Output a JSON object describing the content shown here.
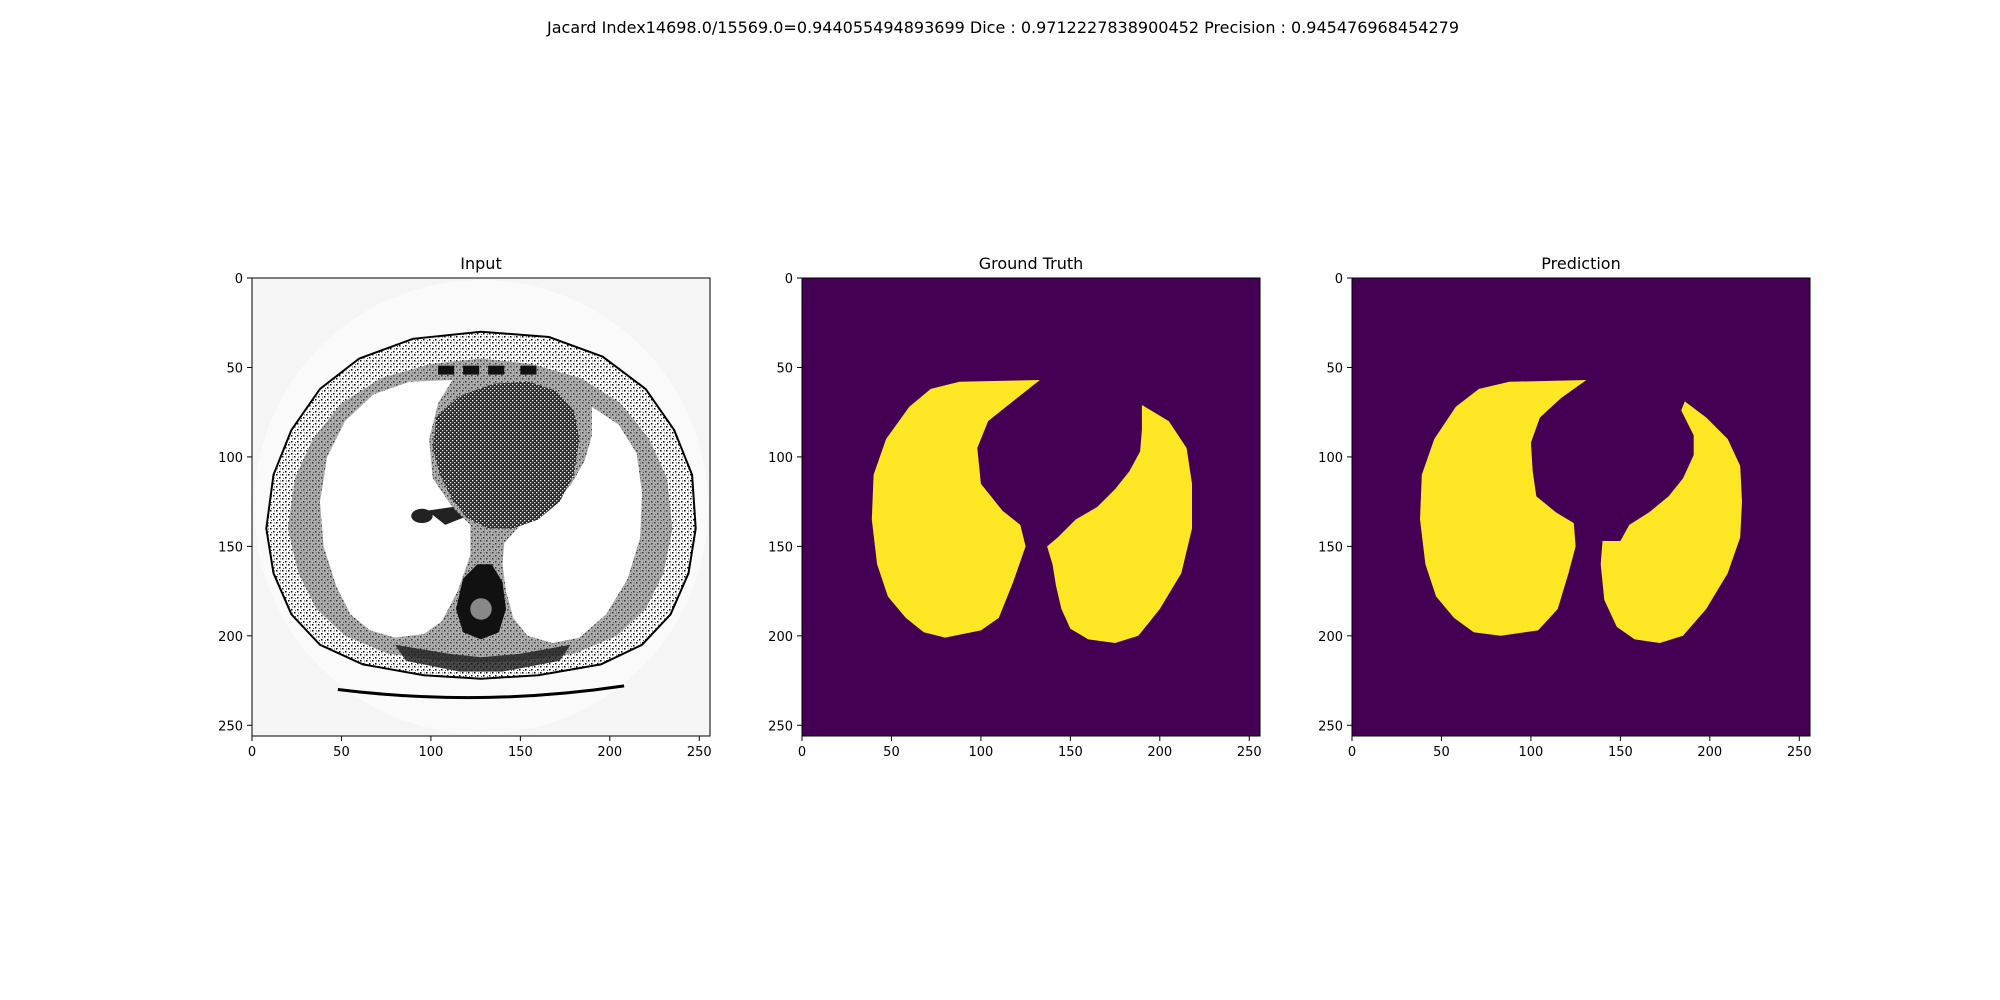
{
  "figure": {
    "suptitle": "Jacard Index14698.0/15569.0=0.944055494893699 Dice : 0.9712227838900452 Precision : 0.945476968454279"
  },
  "chart_data": [
    {
      "type": "heatmap",
      "title": "Input",
      "xlim": [
        0,
        256
      ],
      "ylim": [
        256,
        0
      ],
      "xticks": [
        0,
        50,
        100,
        150,
        200,
        250
      ],
      "yticks": [
        0,
        50,
        100,
        150,
        200,
        250
      ],
      "colormap": "gray",
      "image_description_colors": {
        "background": "#f5f5f5",
        "tissue": "#000000",
        "lung": "#ffffff"
      }
    },
    {
      "type": "heatmap",
      "title": "Ground Truth",
      "xlim": [
        0,
        256
      ],
      "ylim": [
        256,
        0
      ],
      "xticks": [
        0,
        50,
        100,
        150,
        200,
        250
      ],
      "yticks": [
        0,
        50,
        100,
        150,
        200,
        250
      ],
      "colormap": "viridis",
      "colors": {
        "background": "#440154",
        "mask": "#fde725"
      },
      "regions": [
        {
          "name": "left-lung",
          "outline": [
            [
              88,
              58
            ],
            [
              133,
              57
            ],
            [
              119,
              68
            ],
            [
              104,
              80
            ],
            [
              98,
              95
            ],
            [
              100,
              115
            ],
            [
              112,
              130
            ],
            [
              122,
              138
            ],
            [
              125,
              150
            ],
            [
              118,
              170
            ],
            [
              110,
              190
            ],
            [
              100,
              197
            ],
            [
              80,
              201
            ],
            [
              68,
              198
            ],
            [
              58,
              190
            ],
            [
              48,
              178
            ],
            [
              42,
              160
            ],
            [
              39,
              135
            ],
            [
              40,
              110
            ],
            [
              47,
              90
            ],
            [
              60,
              72
            ],
            [
              72,
              62
            ],
            [
              88,
              58
            ]
          ]
        },
        {
          "name": "right-lung",
          "outline": [
            [
              190,
              71
            ],
            [
              205,
              80
            ],
            [
              215,
              95
            ],
            [
              218,
              115
            ],
            [
              218,
              140
            ],
            [
              212,
              165
            ],
            [
              200,
              185
            ],
            [
              188,
              200
            ],
            [
              175,
              204
            ],
            [
              160,
              202
            ],
            [
              150,
              196
            ],
            [
              145,
              185
            ],
            [
              142,
              172
            ],
            [
              140,
              160
            ],
            [
              137,
              150
            ],
            [
              143,
              145
            ],
            [
              153,
              135
            ],
            [
              165,
              128
            ],
            [
              175,
              118
            ],
            [
              183,
              108
            ],
            [
              189,
              97
            ],
            [
              190,
              85
            ],
            [
              190,
              71
            ]
          ]
        }
      ]
    },
    {
      "type": "heatmap",
      "title": "Prediction",
      "xlim": [
        0,
        256
      ],
      "ylim": [
        256,
        0
      ],
      "xticks": [
        0,
        50,
        100,
        150,
        200,
        250
      ],
      "yticks": [
        0,
        50,
        100,
        150,
        200,
        250
      ],
      "colormap": "viridis",
      "colors": {
        "background": "#440154",
        "mask": "#fde725"
      },
      "regions": [
        {
          "name": "left-lung",
          "outline": [
            [
              88,
              58
            ],
            [
              131,
              57
            ],
            [
              117,
              67
            ],
            [
              105,
              78
            ],
            [
              100,
              92
            ],
            [
              101,
              108
            ],
            [
              103,
              122
            ],
            [
              114,
              131
            ],
            [
              124,
              137
            ],
            [
              125,
              150
            ],
            [
              121,
              165
            ],
            [
              115,
              185
            ],
            [
              104,
              197
            ],
            [
              83,
              200
            ],
            [
              68,
              198
            ],
            [
              57,
              190
            ],
            [
              47,
              178
            ],
            [
              41,
              160
            ],
            [
              38,
              135
            ],
            [
              39,
              110
            ],
            [
              46,
              90
            ],
            [
              58,
              72
            ],
            [
              71,
              62
            ],
            [
              88,
              58
            ]
          ]
        },
        {
          "name": "right-lung",
          "outline": [
            [
              186,
              69
            ],
            [
              198,
              78
            ],
            [
              210,
              90
            ],
            [
              217,
              105
            ],
            [
              218,
              125
            ],
            [
              217,
              145
            ],
            [
              210,
              165
            ],
            [
              198,
              185
            ],
            [
              185,
              200
            ],
            [
              172,
              204
            ],
            [
              158,
              202
            ],
            [
              148,
              195
            ],
            [
              141,
              180
            ],
            [
              139,
              160
            ],
            [
              140,
              147
            ],
            [
              150,
              147
            ],
            [
              155,
              138
            ],
            [
              166,
              131
            ],
            [
              177,
              122
            ],
            [
              185,
              112
            ],
            [
              191,
              99
            ],
            [
              191,
              88
            ],
            [
              184,
              74
            ],
            [
              186,
              69
            ]
          ]
        }
      ]
    }
  ]
}
